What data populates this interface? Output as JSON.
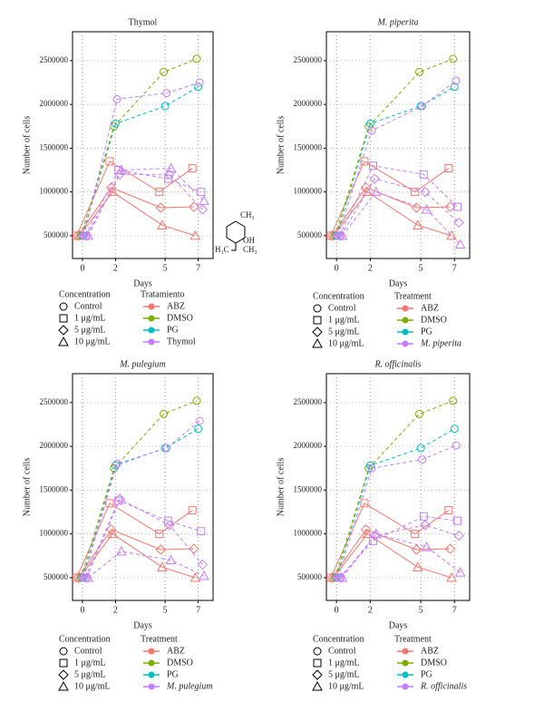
{
  "chart_data": [
    {
      "type": "line",
      "title": "Thymol",
      "title_style": "normal",
      "xlabel": "Days",
      "ylabel": "Number of cells",
      "x": [
        0,
        2,
        5,
        7
      ],
      "xlim": [
        -0.6,
        7.9
      ],
      "xticks": [
        0,
        2,
        5,
        7
      ],
      "ylim": [
        240000,
        2830000
      ],
      "yticks": [
        500000,
        1000000,
        1500000,
        2000000,
        2500000
      ],
      "grid": true,
      "concentration_title": "Concentration",
      "concentration_legend": [
        {
          "name": "Control",
          "marker": "circle"
        },
        {
          "name": "1 μg/mL",
          "marker": "square"
        },
        {
          "name": "5 μg/mL",
          "marker": "diamond"
        },
        {
          "name": "10 μg/mL",
          "marker": "triangle"
        }
      ],
      "treatment_title": "Tratamiento",
      "treatment_legend": [
        {
          "name": "ABZ",
          "color": "#f8766d"
        },
        {
          "name": "DMSO",
          "color": "#7cae00"
        },
        {
          "name": "PG",
          "color": "#00bfc4"
        },
        {
          "name": "Thymol",
          "color": "#c77cff"
        }
      ],
      "annotations": [
        "CH₃",
        "OH",
        "H₃C",
        "CH₃"
      ],
      "series": [
        {
          "color": "#f8766d",
          "marker": "square",
          "dashed": false,
          "values": [
            500000,
            1350000,
            1000000,
            1270000
          ]
        },
        {
          "color": "#f8766d",
          "marker": "diamond",
          "dashed": false,
          "values": [
            500000,
            1050000,
            820000,
            830000
          ]
        },
        {
          "color": "#f8766d",
          "marker": "triangle",
          "dashed": false,
          "values": [
            500000,
            1000000,
            620000,
            500000
          ]
        },
        {
          "color": "#7cae00",
          "marker": "circle",
          "dashed": true,
          "values": [
            500000,
            1750000,
            2370000,
            2520000
          ]
        },
        {
          "color": "#00bfc4",
          "marker": "circle",
          "dashed": true,
          "values": [
            500000,
            1780000,
            1980000,
            2200000
          ]
        },
        {
          "color": "#c77cff",
          "marker": "circle",
          "dashed": true,
          "values": [
            500000,
            2060000,
            2130000,
            2250000
          ]
        },
        {
          "color": "#c77cff",
          "marker": "square",
          "dashed": true,
          "values": [
            500000,
            1250000,
            1150000,
            1000000
          ]
        },
        {
          "color": "#c77cff",
          "marker": "diamond",
          "dashed": true,
          "values": [
            500000,
            1200000,
            1200000,
            800000
          ]
        },
        {
          "color": "#c77cff",
          "marker": "triangle",
          "dashed": true,
          "values": [
            500000,
            1250000,
            1270000,
            900000
          ]
        }
      ]
    },
    {
      "type": "line",
      "title": "M. piperita",
      "title_style": "italic",
      "xlabel": "Days",
      "ylabel": "Number of cells",
      "x": [
        0,
        2,
        5,
        7
      ],
      "xlim": [
        -0.6,
        7.9
      ],
      "xticks": [
        0,
        2,
        5,
        7
      ],
      "ylim": [
        240000,
        2830000
      ],
      "yticks": [
        500000,
        1000000,
        1500000,
        2000000,
        2500000
      ],
      "grid": true,
      "concentration_title": "Concentration",
      "concentration_legend": [
        {
          "name": "Control",
          "marker": "circle"
        },
        {
          "name": "1 μg/mL",
          "marker": "square"
        },
        {
          "name": "5 μg/mL",
          "marker": "diamond"
        },
        {
          "name": "10 μg/mL",
          "marker": "triangle"
        }
      ],
      "treatment_title": "Treatment",
      "treatment_legend": [
        {
          "name": "ABZ",
          "color": "#f8766d"
        },
        {
          "name": "DMSO",
          "color": "#7cae00"
        },
        {
          "name": "PG",
          "color": "#00bfc4"
        },
        {
          "name": "M. piperita",
          "color": "#c77cff"
        }
      ],
      "series": [
        {
          "color": "#f8766d",
          "marker": "square",
          "dashed": false,
          "values": [
            500000,
            1350000,
            1000000,
            1270000
          ]
        },
        {
          "color": "#f8766d",
          "marker": "diamond",
          "dashed": false,
          "values": [
            500000,
            1050000,
            820000,
            830000
          ]
        },
        {
          "color": "#f8766d",
          "marker": "triangle",
          "dashed": false,
          "values": [
            500000,
            1000000,
            620000,
            500000
          ]
        },
        {
          "color": "#7cae00",
          "marker": "circle",
          "dashed": true,
          "values": [
            500000,
            1750000,
            2370000,
            2520000
          ]
        },
        {
          "color": "#00bfc4",
          "marker": "circle",
          "dashed": true,
          "values": [
            500000,
            1780000,
            1980000,
            2200000
          ]
        },
        {
          "color": "#c77cff",
          "marker": "circle",
          "dashed": true,
          "values": [
            500000,
            1700000,
            1980000,
            2270000
          ]
        },
        {
          "color": "#c77cff",
          "marker": "square",
          "dashed": true,
          "values": [
            500000,
            1300000,
            1200000,
            830000
          ]
        },
        {
          "color": "#c77cff",
          "marker": "diamond",
          "dashed": true,
          "values": [
            500000,
            1150000,
            1000000,
            650000
          ]
        },
        {
          "color": "#c77cff",
          "marker": "triangle",
          "dashed": true,
          "values": [
            500000,
            1000000,
            800000,
            400000
          ]
        }
      ]
    },
    {
      "type": "line",
      "title": "M. pulegium",
      "title_style": "italic",
      "xlabel": "Days",
      "ylabel": "Number of cells",
      "x": [
        0,
        2,
        5,
        7
      ],
      "xlim": [
        -0.6,
        7.9
      ],
      "xticks": [
        0,
        2,
        5,
        7
      ],
      "ylim": [
        240000,
        2830000
      ],
      "yticks": [
        500000,
        1000000,
        1500000,
        2000000,
        2500000
      ],
      "grid": true,
      "concentration_title": "Concentration",
      "concentration_legend": [
        {
          "name": "Control",
          "marker": "circle"
        },
        {
          "name": "1 μg/mL",
          "marker": "square"
        },
        {
          "name": "5 μg/mL",
          "marker": "diamond"
        },
        {
          "name": "10 μg/mL",
          "marker": "triangle"
        }
      ],
      "treatment_title": "Treatment",
      "treatment_legend": [
        {
          "name": "ABZ",
          "color": "#f8766d"
        },
        {
          "name": "DMSO",
          "color": "#7cae00"
        },
        {
          "name": "PG",
          "color": "#00bfc4"
        },
        {
          "name": "M. pulegium",
          "color": "#c77cff"
        }
      ],
      "series": [
        {
          "color": "#f8766d",
          "marker": "square",
          "dashed": false,
          "values": [
            500000,
            1350000,
            1000000,
            1270000
          ]
        },
        {
          "color": "#f8766d",
          "marker": "diamond",
          "dashed": false,
          "values": [
            500000,
            1050000,
            820000,
            830000
          ]
        },
        {
          "color": "#f8766d",
          "marker": "triangle",
          "dashed": false,
          "values": [
            500000,
            1000000,
            620000,
            500000
          ]
        },
        {
          "color": "#7cae00",
          "marker": "circle",
          "dashed": true,
          "values": [
            500000,
            1750000,
            2370000,
            2520000
          ]
        },
        {
          "color": "#00bfc4",
          "marker": "circle",
          "dashed": true,
          "values": [
            500000,
            1780000,
            1980000,
            2200000
          ]
        },
        {
          "color": "#c77cff",
          "marker": "circle",
          "dashed": true,
          "values": [
            500000,
            1800000,
            1980000,
            2290000
          ]
        },
        {
          "color": "#c77cff",
          "marker": "square",
          "dashed": true,
          "values": [
            500000,
            1380000,
            1150000,
            1030000
          ]
        },
        {
          "color": "#c77cff",
          "marker": "diamond",
          "dashed": true,
          "values": [
            500000,
            1400000,
            1100000,
            650000
          ]
        },
        {
          "color": "#c77cff",
          "marker": "triangle",
          "dashed": true,
          "values": [
            500000,
            800000,
            700000,
            520000
          ]
        }
      ]
    },
    {
      "type": "line",
      "title": "R. officinalis",
      "title_style": "italic",
      "xlabel": "Days",
      "ylabel": "Number of cells",
      "x": [
        0,
        2,
        5,
        7
      ],
      "xlim": [
        -0.6,
        7.9
      ],
      "xticks": [
        0,
        2,
        5,
        7
      ],
      "ylim": [
        240000,
        2830000
      ],
      "yticks": [
        500000,
        1000000,
        1500000,
        2000000,
        2500000
      ],
      "grid": true,
      "concentration_title": "Concentration",
      "concentration_legend": [
        {
          "name": "Control",
          "marker": "circle"
        },
        {
          "name": "1 μg/mL",
          "marker": "square"
        },
        {
          "name": "5 μg/mL",
          "marker": "diamond"
        },
        {
          "name": "10 μg/mL",
          "marker": "triangle"
        }
      ],
      "treatment_title": "Treatment",
      "treatment_legend": [
        {
          "name": "ABZ",
          "color": "#f8766d"
        },
        {
          "name": "DMSO",
          "color": "#7cae00"
        },
        {
          "name": "PG",
          "color": "#00bfc4"
        },
        {
          "name": "R. officinalis",
          "color": "#c77cff"
        }
      ],
      "series": [
        {
          "color": "#f8766d",
          "marker": "square",
          "dashed": false,
          "values": [
            500000,
            1350000,
            1000000,
            1270000
          ]
        },
        {
          "color": "#f8766d",
          "marker": "diamond",
          "dashed": false,
          "values": [
            500000,
            1050000,
            820000,
            830000
          ]
        },
        {
          "color": "#f8766d",
          "marker": "triangle",
          "dashed": false,
          "values": [
            500000,
            1000000,
            620000,
            500000
          ]
        },
        {
          "color": "#7cae00",
          "marker": "circle",
          "dashed": true,
          "values": [
            500000,
            1750000,
            2370000,
            2520000
          ]
        },
        {
          "color": "#00bfc4",
          "marker": "circle",
          "dashed": true,
          "values": [
            500000,
            1780000,
            1980000,
            2200000
          ]
        },
        {
          "color": "#c77cff",
          "marker": "circle",
          "dashed": true,
          "values": [
            500000,
            1750000,
            1850000,
            2010000
          ]
        },
        {
          "color": "#c77cff",
          "marker": "square",
          "dashed": true,
          "values": [
            500000,
            920000,
            1200000,
            1150000
          ]
        },
        {
          "color": "#c77cff",
          "marker": "diamond",
          "dashed": true,
          "values": [
            500000,
            980000,
            1100000,
            980000
          ]
        },
        {
          "color": "#c77cff",
          "marker": "triangle",
          "dashed": true,
          "values": [
            500000,
            1000000,
            850000,
            560000
          ]
        }
      ]
    }
  ]
}
